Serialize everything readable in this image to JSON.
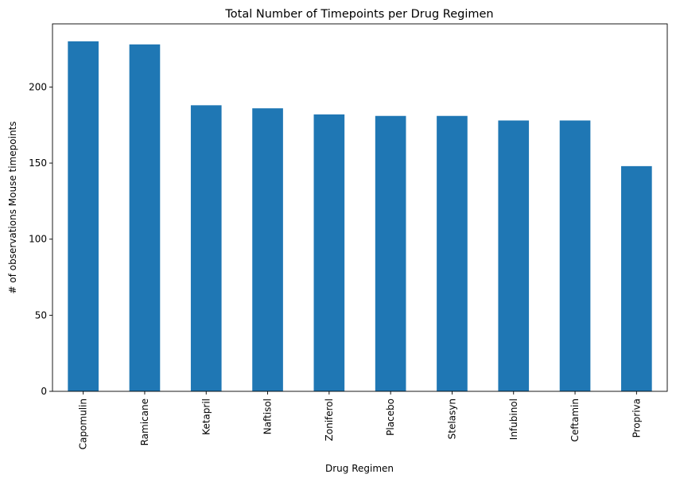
{
  "chart_data": {
    "type": "bar",
    "title": "Total Number of Timepoints per Drug Regimen",
    "xlabel": "Drug Regimen",
    "ylabel": "# of observations Mouse timepoints",
    "categories": [
      "Capomulin",
      "Ramicane",
      "Ketapril",
      "Naftisol",
      "Zoniferol",
      "Placebo",
      "Stelasyn",
      "Infubinol",
      "Ceftamin",
      "Propriva"
    ],
    "values": [
      230,
      228,
      188,
      186,
      182,
      181,
      181,
      178,
      178,
      148
    ],
    "ylim": [
      0,
      241.5
    ],
    "yticks": [
      0,
      50,
      100,
      150,
      200
    ],
    "color": "#1f77b4",
    "grid": false,
    "legend": "none"
  }
}
